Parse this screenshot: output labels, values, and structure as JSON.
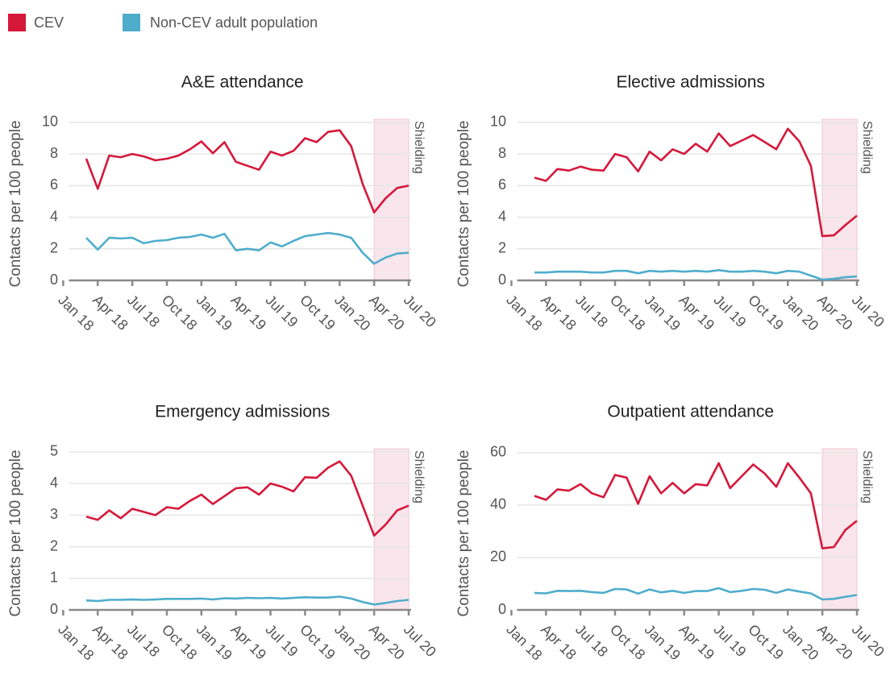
{
  "chart_data": [
    {
      "type": "line",
      "title": "A&E attendance",
      "y_label": "Contacts per 100 people",
      "categories": [
        "Jan 18",
        null,
        null,
        "Apr 18",
        null,
        null,
        "Jul 18",
        null,
        null,
        "Oct 18",
        null,
        null,
        "Jan 19",
        null,
        null,
        "Apr 19",
        null,
        null,
        "Jul 19",
        null,
        null,
        "Oct 19",
        null,
        null,
        "Jan 20",
        null,
        null,
        "Apr 20",
        null,
        null,
        "Jul 20"
      ],
      "series": [
        {
          "name": "CEV",
          "color": "#d5183a",
          "values": [
            null,
            null,
            7.7,
            5.8,
            7.9,
            7.8,
            8.0,
            7.85,
            7.6,
            7.7,
            7.9,
            8.3,
            8.8,
            8.05,
            8.75,
            7.5,
            7.25,
            7.0,
            8.15,
            7.9,
            8.2,
            9.0,
            8.75,
            9.4,
            9.5,
            8.5,
            6.1,
            4.3,
            5.2,
            5.85,
            6.0
          ]
        },
        {
          "name": "Non-CEV adult population",
          "color": "#4fadcc",
          "values": [
            null,
            null,
            2.7,
            1.95,
            2.7,
            2.65,
            2.7,
            2.35,
            2.5,
            2.55,
            2.7,
            2.75,
            2.9,
            2.7,
            2.95,
            1.9,
            2.0,
            1.9,
            2.4,
            2.15,
            2.5,
            2.8,
            2.9,
            3.0,
            2.9,
            2.7,
            1.75,
            1.05,
            1.45,
            1.7,
            1.75
          ]
        }
      ],
      "ylim": [
        0,
        10.2
      ],
      "yticks": [
        0,
        2,
        4,
        6,
        8,
        10
      ],
      "grid": true,
      "shade": {
        "label": "Shielding",
        "start": "Apr 20",
        "end": "Jul 20",
        "color": "#f9e6ec"
      }
    },
    {
      "type": "line",
      "title": "Elective admissions",
      "y_label": "Contacts per 100 people",
      "categories": [
        "Jan 18",
        null,
        null,
        "Apr 18",
        null,
        null,
        "Jul 18",
        null,
        null,
        "Oct 18",
        null,
        null,
        "Jan 19",
        null,
        null,
        "Apr 19",
        null,
        null,
        "Jul 19",
        null,
        null,
        "Oct 19",
        null,
        null,
        "Jan 20",
        null,
        null,
        "Apr 20",
        null,
        null,
        "Jul 20"
      ],
      "series": [
        {
          "name": "CEV",
          "color": "#d5183a",
          "values": [
            null,
            null,
            6.5,
            6.3,
            7.05,
            6.95,
            7.2,
            7.0,
            6.95,
            8.0,
            7.8,
            6.9,
            8.15,
            7.6,
            8.3,
            8.0,
            8.65,
            8.15,
            9.3,
            8.5,
            8.85,
            9.2,
            8.75,
            8.3,
            9.6,
            8.8,
            7.25,
            2.8,
            2.85,
            3.5,
            4.1
          ]
        },
        {
          "name": "Non-CEV adult population",
          "color": "#4fadcc",
          "values": [
            null,
            null,
            0.5,
            0.5,
            0.55,
            0.55,
            0.55,
            0.5,
            0.5,
            0.6,
            0.6,
            0.45,
            0.6,
            0.55,
            0.6,
            0.55,
            0.6,
            0.55,
            0.65,
            0.55,
            0.55,
            0.6,
            0.55,
            0.45,
            0.6,
            0.55,
            0.3,
            0.05,
            0.1,
            0.2,
            0.25
          ]
        }
      ],
      "ylim": [
        0,
        10.2
      ],
      "yticks": [
        0,
        2,
        4,
        6,
        8,
        10
      ],
      "grid": true,
      "shade": {
        "label": "Shielding",
        "start": "Apr 20",
        "end": "Jul 20",
        "color": "#f9e6ec"
      }
    },
    {
      "type": "line",
      "title": "Emergency admissions",
      "y_label": "Contacts per 100 people",
      "categories": [
        "Jan 18",
        null,
        null,
        "Apr 18",
        null,
        null,
        "Jul 18",
        null,
        null,
        "Oct 18",
        null,
        null,
        "Jan 19",
        null,
        null,
        "Apr 19",
        null,
        null,
        "Jul 19",
        null,
        null,
        "Oct 19",
        null,
        null,
        "Jan 20",
        null,
        null,
        "Apr 20",
        null,
        null,
        "Jul 20"
      ],
      "series": [
        {
          "name": "CEV",
          "color": "#d5183a",
          "values": [
            null,
            null,
            2.95,
            2.85,
            3.15,
            2.9,
            3.2,
            3.1,
            3.0,
            3.25,
            3.2,
            3.45,
            3.65,
            3.35,
            3.6,
            3.85,
            3.88,
            3.65,
            4.0,
            3.9,
            3.75,
            4.2,
            4.18,
            4.5,
            4.7,
            4.25,
            3.3,
            2.35,
            2.7,
            3.15,
            3.3
          ]
        },
        {
          "name": "Non-CEV adult population",
          "color": "#4fadcc",
          "values": [
            null,
            null,
            0.3,
            0.28,
            0.32,
            0.32,
            0.33,
            0.32,
            0.33,
            0.35,
            0.35,
            0.35,
            0.36,
            0.33,
            0.37,
            0.36,
            0.38,
            0.37,
            0.38,
            0.36,
            0.38,
            0.4,
            0.39,
            0.39,
            0.42,
            0.36,
            0.25,
            0.17,
            0.22,
            0.28,
            0.32
          ]
        }
      ],
      "ylim": [
        0,
        5.1
      ],
      "yticks": [
        0,
        1,
        2,
        3,
        4,
        5
      ],
      "grid": true,
      "shade": {
        "label": "Shielding",
        "start": "Apr 20",
        "end": "Jul 20",
        "color": "#f9e6ec"
      }
    },
    {
      "type": "line",
      "title": "Outpatient attendance",
      "y_label": "Contacts per 100 people",
      "categories": [
        "Jan 18",
        null,
        null,
        "Apr 18",
        null,
        null,
        "Jul 18",
        null,
        null,
        "Oct 18",
        null,
        null,
        "Jan 19",
        null,
        null,
        "Apr 19",
        null,
        null,
        "Jul 19",
        null,
        null,
        "Oct 19",
        null,
        null,
        "Jan 20",
        null,
        null,
        "Apr 20",
        null,
        null,
        "Jul 20"
      ],
      "series": [
        {
          "name": "CEV",
          "color": "#d5183a",
          "values": [
            null,
            null,
            43.5,
            42,
            46,
            45.5,
            48,
            44.5,
            43,
            51.5,
            50.5,
            40.5,
            51,
            44.5,
            48.5,
            44.5,
            48,
            47.5,
            56,
            46.5,
            51,
            55.5,
            52,
            47,
            56,
            50.5,
            44.5,
            23.5,
            24,
            30.5,
            34
          ]
        },
        {
          "name": "Non-CEV adult population",
          "color": "#4fadcc",
          "values": [
            null,
            null,
            6.5,
            6.3,
            7.3,
            7.2,
            7.3,
            6.8,
            6.5,
            8,
            7.8,
            6.2,
            7.8,
            6.7,
            7.3,
            6.5,
            7.2,
            7.2,
            8.3,
            6.8,
            7.3,
            8,
            7.7,
            6.5,
            7.8,
            7,
            6.3,
            4,
            4.2,
            5,
            5.7
          ]
        }
      ],
      "ylim": [
        0,
        61.5
      ],
      "yticks": [
        0,
        20,
        40,
        60
      ],
      "grid": true,
      "shade": {
        "label": "Shielding",
        "start": "Apr 20",
        "end": "Jul 20",
        "color": "#f9e6ec"
      }
    }
  ]
}
